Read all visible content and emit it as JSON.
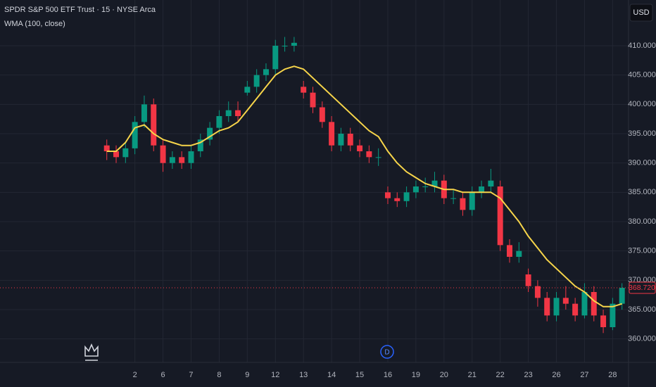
{
  "chart_data": {
    "type": "candlestick",
    "title": "SPDR S&P 500 ETF Trust · 15 · NYSE Arca",
    "currency": "USD",
    "event_marker": "D",
    "grid": true,
    "background": "#161a25",
    "xlim": [
      -11.4,
      55.7
    ],
    "xticks": [
      {
        "value": 3,
        "label": "2"
      },
      {
        "value": 6,
        "label": "6"
      },
      {
        "value": 9,
        "label": "7"
      },
      {
        "value": 12,
        "label": "8"
      },
      {
        "value": 15,
        "label": "9"
      },
      {
        "value": 18,
        "label": "12"
      },
      {
        "value": 21,
        "label": "13"
      },
      {
        "value": 24,
        "label": "14"
      },
      {
        "value": 27,
        "label": "15"
      },
      {
        "value": 30,
        "label": "16"
      },
      {
        "value": 33,
        "label": "19"
      },
      {
        "value": 36,
        "label": "20"
      },
      {
        "value": 39,
        "label": "21"
      },
      {
        "value": 42,
        "label": "22"
      },
      {
        "value": 45,
        "label": "23"
      },
      {
        "value": 48,
        "label": "26"
      },
      {
        "value": 51,
        "label": "27"
      },
      {
        "value": 54,
        "label": "28"
      }
    ],
    "ylim": [
      356,
      417.8
    ],
    "yticks": [
      {
        "value": 360,
        "label": "360.000"
      },
      {
        "value": 365,
        "label": "365.000"
      },
      {
        "value": 370,
        "label": "370.000"
      },
      {
        "value": 375,
        "label": "375.000"
      },
      {
        "value": 380,
        "label": "380.000"
      },
      {
        "value": 385,
        "label": "385.000"
      },
      {
        "value": 390,
        "label": "390.000"
      },
      {
        "value": 395,
        "label": "395.000"
      },
      {
        "value": 400,
        "label": "400.000"
      },
      {
        "value": 405,
        "label": "405.000"
      },
      {
        "value": 410,
        "label": "410.000"
      }
    ],
    "last_price": {
      "value": 368.72,
      "label": "368.720"
    },
    "series": [
      {
        "name": "SPDR S&P 500 ETF Trust",
        "type": "candlestick",
        "up_color": "#089981",
        "down_color": "#f23645",
        "open": [
          393,
          392,
          391,
          392.5,
          397,
          400,
          393,
          390,
          391,
          390,
          392,
          394,
          396,
          398,
          399,
          402,
          403,
          405,
          406,
          410,
          410,
          403,
          402,
          399.5,
          397,
          393,
          395,
          393,
          392,
          391,
          385,
          384,
          383.5,
          385,
          386,
          386,
          387,
          384,
          384,
          382,
          385,
          386,
          386,
          376,
          374,
          371,
          369,
          367,
          364,
          367,
          366,
          364,
          368,
          364,
          362,
          366
        ],
        "high": [
          394,
          393,
          393.5,
          398,
          401.5,
          401,
          394,
          392,
          392,
          393,
          395,
          397,
          399,
          400.5,
          400.5,
          404,
          406,
          407,
          411,
          411.5,
          411.5,
          404,
          403,
          400.5,
          398,
          396,
          396,
          394,
          393,
          392.5,
          386,
          385,
          386,
          387,
          387.5,
          388.5,
          388,
          385.5,
          385,
          386,
          387,
          389,
          387,
          377,
          376.5,
          372,
          370,
          368,
          368,
          369,
          367,
          369.5,
          369,
          365,
          367,
          369.5
        ],
        "low": [
          390.5,
          390,
          390,
          391.5,
          396,
          392,
          388.5,
          389,
          389,
          389,
          391,
          393,
          395,
          397,
          397,
          401.5,
          402,
          404,
          405,
          409,
          409,
          401,
          398.5,
          396,
          392,
          392,
          392,
          391,
          390,
          389.5,
          383,
          382.5,
          382.5,
          384,
          385,
          385,
          383,
          383,
          381,
          381,
          384,
          385,
          375,
          373,
          373,
          368,
          365.5,
          363,
          363,
          365,
          363,
          363.5,
          363,
          361,
          361.5,
          365
        ],
        "close": [
          392,
          391,
          392.5,
          397,
          400,
          393,
          390,
          391,
          390,
          392,
          394,
          396,
          398,
          399,
          398,
          403,
          405,
          406,
          410,
          410,
          410.5,
          402,
          399.5,
          397,
          393,
          395,
          393,
          392,
          391,
          391,
          384,
          383.5,
          385,
          386,
          386,
          387,
          384,
          384,
          382,
          385,
          386,
          387,
          376,
          374,
          375,
          369,
          367,
          364,
          367,
          366,
          364,
          368,
          364,
          362,
          366,
          368.72
        ]
      },
      {
        "name": "WMA (100, close)",
        "type": "line",
        "color": "#f7d54a",
        "values": [
          392,
          392,
          393.5,
          396,
          396.5,
          395,
          394,
          393.5,
          393,
          393,
          393.5,
          394.5,
          395.5,
          396,
          397,
          399,
          401,
          403,
          405,
          406,
          406.5,
          406,
          404.5,
          403,
          401.5,
          400,
          398.5,
          397,
          395.5,
          394.5,
          392,
          390,
          388.5,
          387.5,
          386.5,
          386,
          385.5,
          385.5,
          385,
          385,
          385,
          385,
          384,
          382,
          380,
          377.5,
          375.5,
          373.5,
          372,
          370.5,
          369,
          368,
          366.5,
          365.5,
          365.5,
          366
        ]
      }
    ]
  }
}
